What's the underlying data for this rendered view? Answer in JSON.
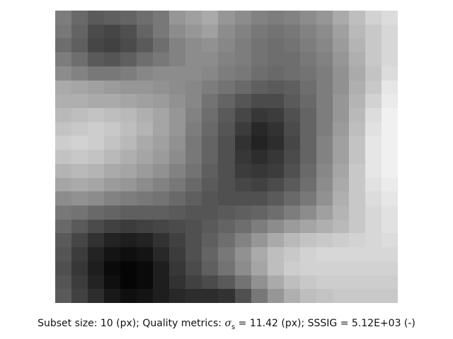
{
  "caption": {
    "prefix": "Subset size: 10 (px); Quality metrics: ",
    "sigma_symbol": "σ",
    "sigma_subscript": "s",
    "sigma_value": " = 11.42 (px); SSSIG = 5.12E+03 (-)"
  },
  "image": {
    "rows": 21,
    "cols": 21,
    "gray": [
      [
        125,
        105,
        90,
        95,
        100,
        110,
        120,
        150,
        160,
        170,
        150,
        140,
        130,
        125,
        130,
        140,
        150,
        170,
        190,
        210,
        220
      ],
      [
        120,
        100,
        75,
        70,
        80,
        100,
        120,
        140,
        150,
        160,
        140,
        130,
        120,
        115,
        120,
        130,
        140,
        160,
        185,
        200,
        215
      ],
      [
        110,
        95,
        70,
        65,
        75,
        90,
        110,
        130,
        140,
        145,
        135,
        125,
        115,
        110,
        115,
        125,
        135,
        155,
        180,
        200,
        215
      ],
      [
        125,
        110,
        90,
        85,
        95,
        110,
        120,
        130,
        140,
        140,
        130,
        125,
        115,
        110,
        110,
        120,
        130,
        150,
        175,
        200,
        215
      ],
      [
        140,
        130,
        120,
        120,
        125,
        135,
        140,
        140,
        140,
        135,
        125,
        120,
        110,
        105,
        110,
        115,
        125,
        145,
        170,
        195,
        220
      ],
      [
        170,
        165,
        160,
        155,
        150,
        150,
        145,
        140,
        135,
        125,
        115,
        105,
        95,
        90,
        95,
        110,
        125,
        145,
        175,
        200,
        230
      ],
      [
        175,
        175,
        170,
        170,
        165,
        160,
        155,
        145,
        135,
        115,
        100,
        85,
        75,
        75,
        90,
        105,
        125,
        150,
        180,
        210,
        235
      ],
      [
        185,
        190,
        195,
        190,
        185,
        175,
        165,
        150,
        130,
        110,
        90,
        70,
        55,
        60,
        80,
        100,
        125,
        150,
        185,
        220,
        240
      ],
      [
        195,
        200,
        205,
        200,
        190,
        180,
        165,
        150,
        125,
        105,
        85,
        60,
        40,
        50,
        75,
        100,
        125,
        155,
        190,
        225,
        240
      ],
      [
        205,
        210,
        205,
        195,
        185,
        170,
        160,
        145,
        120,
        100,
        80,
        50,
        35,
        45,
        70,
        100,
        130,
        160,
        195,
        230,
        240
      ],
      [
        195,
        200,
        195,
        185,
        175,
        165,
        155,
        140,
        120,
        100,
        80,
        55,
        45,
        55,
        75,
        100,
        130,
        160,
        195,
        230,
        240
      ],
      [
        180,
        185,
        180,
        170,
        165,
        155,
        145,
        130,
        115,
        95,
        80,
        60,
        55,
        60,
        80,
        105,
        135,
        165,
        200,
        230,
        240
      ],
      [
        165,
        170,
        165,
        155,
        150,
        140,
        130,
        120,
        105,
        90,
        80,
        70,
        65,
        75,
        90,
        110,
        140,
        170,
        200,
        225,
        235
      ],
      [
        140,
        145,
        140,
        130,
        125,
        120,
        115,
        105,
        95,
        85,
        80,
        80,
        80,
        90,
        105,
        120,
        145,
        175,
        200,
        220,
        230
      ],
      [
        120,
        115,
        105,
        100,
        95,
        95,
        95,
        90,
        85,
        85,
        90,
        95,
        100,
        110,
        125,
        140,
        160,
        180,
        200,
        215,
        225
      ],
      [
        105,
        90,
        75,
        65,
        60,
        65,
        70,
        75,
        80,
        90,
        100,
        110,
        125,
        140,
        155,
        165,
        175,
        185,
        200,
        215,
        225
      ],
      [
        90,
        70,
        50,
        35,
        30,
        35,
        50,
        65,
        80,
        95,
        110,
        130,
        150,
        170,
        185,
        195,
        200,
        205,
        210,
        215,
        220
      ],
      [
        85,
        60,
        35,
        20,
        15,
        20,
        40,
        60,
        80,
        100,
        120,
        145,
        170,
        190,
        200,
        210,
        215,
        215,
        215,
        215,
        215
      ],
      [
        80,
        55,
        30,
        10,
        5,
        10,
        30,
        55,
        75,
        95,
        115,
        140,
        165,
        190,
        205,
        210,
        210,
        210,
        210,
        210,
        210
      ],
      [
        85,
        60,
        35,
        15,
        5,
        10,
        30,
        50,
        65,
        75,
        90,
        115,
        145,
        170,
        190,
        200,
        205,
        205,
        205,
        205,
        205
      ],
      [
        90,
        65,
        45,
        25,
        15,
        20,
        30,
        40,
        45,
        45,
        50,
        80,
        120,
        150,
        175,
        190,
        195,
        200,
        200,
        200,
        200
      ]
    ]
  }
}
